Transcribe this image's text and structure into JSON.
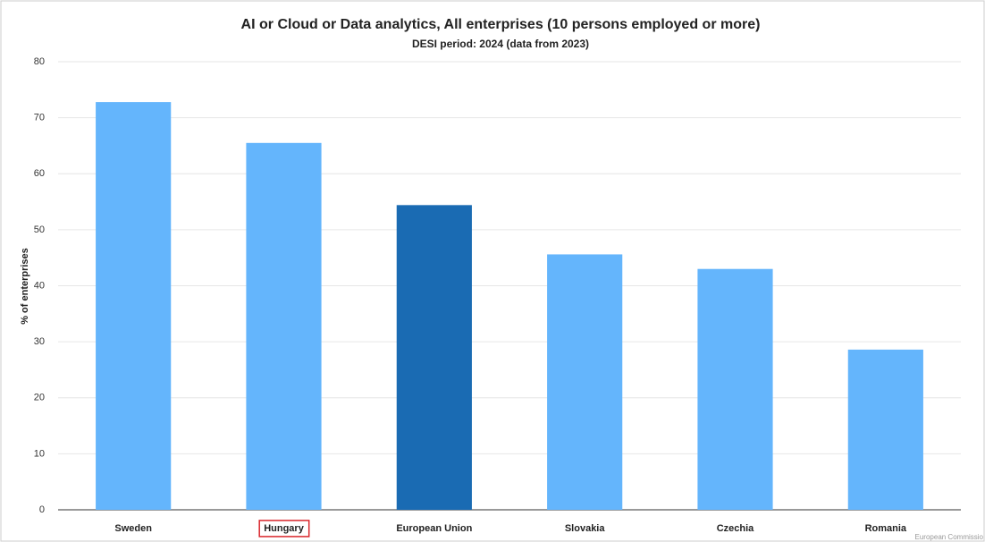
{
  "chart_data": {
    "type": "bar",
    "title": "AI or Cloud or Data analytics, All enterprises (10 persons employed or more)",
    "subtitle": "DESI period: 2024 (data from 2023)",
    "y_label": "% of enterprises",
    "categories": [
      "Sweden",
      "Hungary",
      "European Union",
      "Slovakia",
      "Czechia",
      "Romania"
    ],
    "values": [
      72.8,
      65.5,
      54.4,
      45.6,
      43.0,
      28.6
    ],
    "colors": [
      "#64b5fc",
      "#64b5fc",
      "#1a6bb3",
      "#64b5fc",
      "#64b5fc",
      "#64b5fc"
    ],
    "highlight_index": 1,
    "ylim": [
      0,
      80
    ],
    "yticks": [
      0,
      10,
      20,
      30,
      40,
      50,
      60,
      70,
      80
    ],
    "grid": true,
    "source": "European Commissio"
  }
}
